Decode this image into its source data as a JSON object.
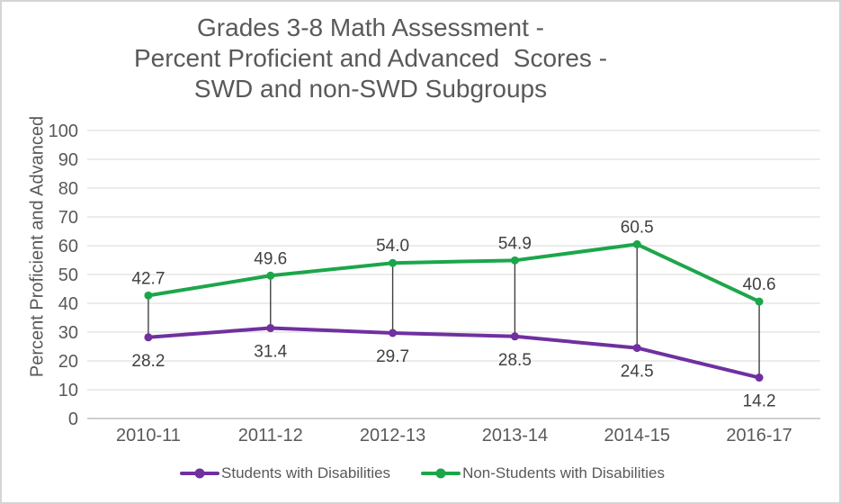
{
  "frame": {
    "border_color": "#D5D5D5",
    "background": "#FFFFFF"
  },
  "title": {
    "lines": [
      "Grades 3-8 Math Assessment -",
      "Percent Proficient and Advanced  Scores -",
      "SWD and non-SWD Subgroups"
    ],
    "color": "#595959"
  },
  "y_axis": {
    "title": "Percent Proficient and Advanced",
    "ticks": [
      0,
      10,
      20,
      30,
      40,
      50,
      60,
      70,
      80,
      90,
      100
    ],
    "min": 0,
    "max": 100
  },
  "x_axis": {
    "categories": [
      "2010-11",
      "2011-12",
      "2012-13",
      "2013-14",
      "2014-15",
      "2016-17"
    ]
  },
  "legend": [
    {
      "label": "Students with Disabilities",
      "color": "#7030A0"
    },
    {
      "label": "Non-Students with Disabilities",
      "color": "#1CA64A"
    }
  ],
  "colors": {
    "gridline": "#D9D9D9",
    "axis_line": "#BFBFBF",
    "high_low_line": "#404040",
    "tick_label": "#595959",
    "data_label": "#404040"
  },
  "chart_data": {
    "type": "line",
    "title": "Grades 3-8 Math Assessment - Percent Proficient and Advanced Scores - SWD and non-SWD Subgroups",
    "ylabel": "Percent Proficient and Advanced",
    "xlabel": "",
    "ylim": [
      0,
      100
    ],
    "grid": true,
    "high_low_lines": true,
    "legend_position": "bottom",
    "categories": [
      "2010-11",
      "2011-12",
      "2012-13",
      "2013-14",
      "2014-15",
      "2016-17"
    ],
    "series": [
      {
        "name": "Students with Disabilities",
        "color": "#7030A0",
        "values": [
          28.2,
          31.4,
          29.7,
          28.5,
          24.5,
          14.2
        ],
        "label_position": "below"
      },
      {
        "name": "Non-Students with Disabilities",
        "color": "#1CA64A",
        "values": [
          42.7,
          49.6,
          54.0,
          54.9,
          60.5,
          40.6
        ],
        "label_position": "above"
      }
    ]
  }
}
